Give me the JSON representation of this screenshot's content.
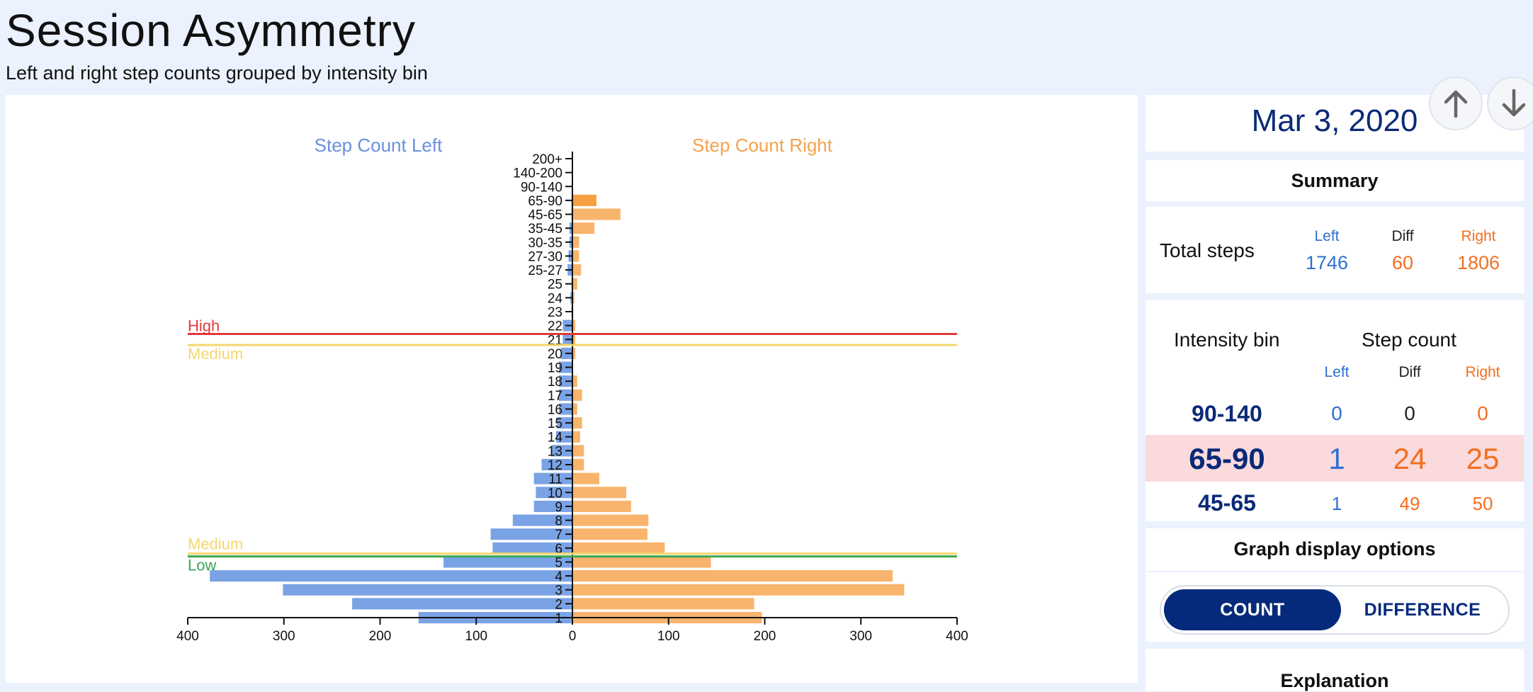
{
  "header": {
    "title": "Session Asymmetry",
    "subtitle": "Left and right step counts grouped by intensity bin"
  },
  "nav": {
    "up_icon": "arrow-up-icon",
    "down_icon": "arrow-down-icon"
  },
  "date": "Mar 3, 2020",
  "summary": {
    "heading": "Summary",
    "total_steps": {
      "label": "Total steps",
      "left_label": "Left",
      "diff_label": "Diff",
      "right_label": "Right",
      "left": "1746",
      "diff": "60",
      "right": "1806"
    }
  },
  "bins_table": {
    "bin_heading": "Intensity bin",
    "count_heading": "Step count",
    "left_label": "Left",
    "diff_label": "Diff",
    "right_label": "Right",
    "rows": [
      {
        "bin": "90-140",
        "left": "0",
        "diff": "0",
        "right": "0",
        "highlight": false
      },
      {
        "bin": "65-90",
        "left": "1",
        "diff": "24",
        "right": "25",
        "highlight": true
      },
      {
        "bin": "45-65",
        "left": "1",
        "diff": "49",
        "right": "50",
        "highlight": false
      }
    ]
  },
  "display_options": {
    "heading": "Graph display options",
    "count_label": "COUNT",
    "difference_label": "DIFFERENCE",
    "selected": "COUNT"
  },
  "next_heading": "Explanation",
  "colors": {
    "left": "#7aa3e5",
    "right": "#f8b46c",
    "high": "#e03b3b",
    "medium": "#f5d76e",
    "low": "#3aa655"
  },
  "chart_data": {
    "type": "bar",
    "orientation": "horizontal-diverging",
    "left_title": "Step Count Left",
    "right_title": "Step Count Right",
    "categories": [
      "200+",
      "140-200",
      "90-140",
      "65-90",
      "45-65",
      "35-45",
      "30-35",
      "27-30",
      "25-27",
      "25",
      "24",
      "23",
      "22",
      "21",
      "20",
      "19",
      "18",
      "17",
      "16",
      "15",
      "14",
      "13",
      "12",
      "11",
      "10",
      "9",
      "8",
      "7",
      "6",
      "5",
      "4",
      "3",
      "2",
      "1"
    ],
    "series": [
      {
        "name": "Step Count Left",
        "values": [
          0,
          0,
          0,
          1,
          1,
          3,
          3,
          4,
          5,
          1,
          2,
          1,
          10,
          10,
          12,
          14,
          14,
          14,
          14,
          16,
          17,
          22,
          32,
          40,
          38,
          40,
          62,
          85,
          83,
          134,
          377,
          301,
          229,
          160
        ]
      },
      {
        "name": "Step Count Right",
        "values": [
          0,
          0,
          0,
          25,
          50,
          23,
          7,
          7,
          9,
          5,
          2,
          1,
          3,
          3,
          3,
          0,
          5,
          10,
          5,
          10,
          8,
          12,
          12,
          28,
          56,
          61,
          79,
          78,
          96,
          144,
          333,
          345,
          189,
          197
        ]
      }
    ],
    "xlim": [
      -400,
      400
    ],
    "x_ticks": [
      "400",
      "300",
      "200",
      "100",
      "0",
      "100",
      "200",
      "300",
      "400"
    ],
    "thresholds": [
      {
        "label": "High",
        "between": [
          "22",
          "21"
        ]
      },
      {
        "label": "Medium",
        "between": [
          "21",
          "20"
        ]
      },
      {
        "label": "Medium",
        "between": [
          "6",
          "5"
        ]
      },
      {
        "label": "Low",
        "between": [
          "6",
          "5"
        ]
      }
    ]
  }
}
